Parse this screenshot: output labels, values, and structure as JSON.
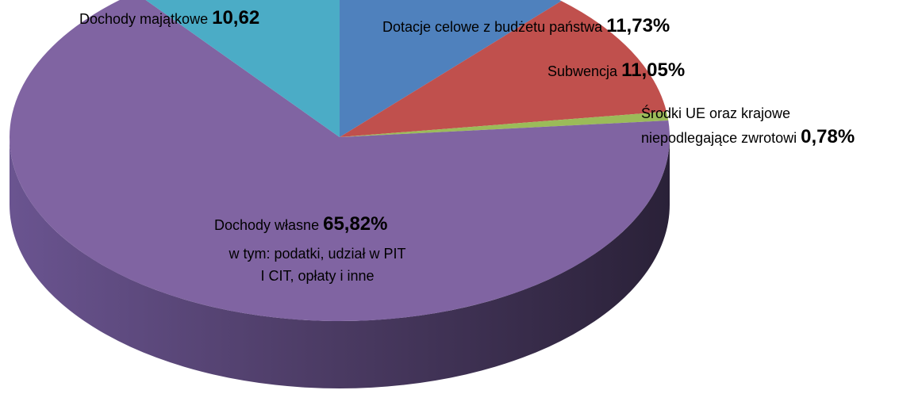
{
  "chart_data": {
    "type": "pie",
    "three_d": true,
    "categories": [
      "Dotacje celowe z budżetu państwa",
      "Subwencja",
      "Środki UE oraz krajowe niepodlegające zwrotowi",
      "Dochody własne",
      "Dochody majątkowe"
    ],
    "values": [
      11.73,
      11.05,
      0.78,
      65.82,
      10.62
    ],
    "value_labels": [
      "11,73%",
      "11,05%",
      "0,78%",
      "65,82%",
      "10,62"
    ],
    "colors": [
      "#4f81bd",
      "#c0504d",
      "#9bbb59",
      "#8064a2",
      "#4bacc6"
    ],
    "annotation": "w tym: podatki, udział w PIT I CIT, opłaty i inne"
  }
}
